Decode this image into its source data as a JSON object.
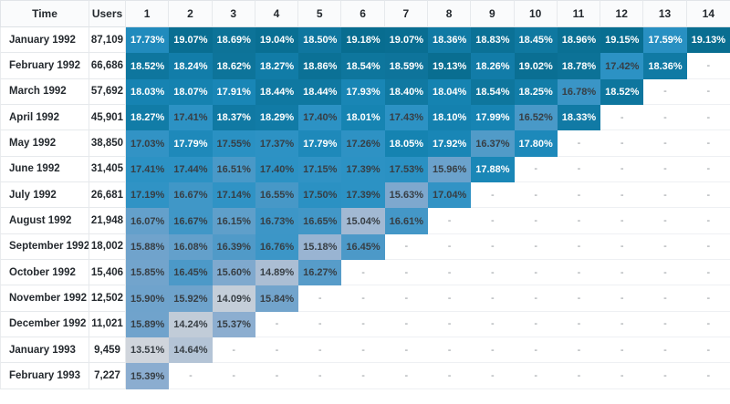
{
  "empty_cell": "-",
  "colors": {
    "header_bg": "#fafbfc",
    "header_text": "#24292e",
    "row_label_text": "#24292e",
    "border": "#e1e4e8",
    "empty_row_border": "#eef0f3",
    "cell_text_light": "#ffffff",
    "cell_text_dark": "#373e44",
    "empty_dash": "#8b9196",
    "white_text_min_value": 17.57,
    "scale": [
      {
        "v": 13.5,
        "c": "#d0d5dc"
      },
      {
        "v": 14.3,
        "c": "#c0cbd8"
      },
      {
        "v": 14.9,
        "c": "#abbed4"
      },
      {
        "v": 15.4,
        "c": "#8aadd0"
      },
      {
        "v": 15.9,
        "c": "#6fa3cc"
      },
      {
        "v": 16.4,
        "c": "#4f9ac8"
      },
      {
        "v": 16.9,
        "c": "#3494c6"
      },
      {
        "v": 17.55,
        "c": "#2a91c3"
      },
      {
        "v": 17.8,
        "c": "#1d89ba"
      },
      {
        "v": 18.05,
        "c": "#1583b1"
      },
      {
        "v": 18.3,
        "c": "#117ba6"
      },
      {
        "v": 18.65,
        "c": "#0d7399"
      },
      {
        "v": 19.2,
        "c": "#086d90"
      }
    ]
  },
  "chart_data": {
    "type": "heatmap",
    "title": "",
    "value_format": "percent",
    "value_range": [
      13.51,
      19.18
    ],
    "legend": "none",
    "columns": [
      "Time",
      "Users",
      "1",
      "2",
      "3",
      "4",
      "5",
      "6",
      "7",
      "8",
      "9",
      "10",
      "11",
      "12",
      "13",
      "14"
    ],
    "rows": [
      {
        "time": "January 1992",
        "users": "87,109",
        "values": [
          17.73,
          19.07,
          18.69,
          19.04,
          18.5,
          19.18,
          19.07,
          18.36,
          18.83,
          18.45,
          18.96,
          19.15,
          17.59,
          19.13
        ]
      },
      {
        "time": "February 1992",
        "users": "66,686",
        "values": [
          18.52,
          18.24,
          18.62,
          18.27,
          18.86,
          18.54,
          18.59,
          19.13,
          18.26,
          19.02,
          18.78,
          17.42,
          18.36,
          null
        ]
      },
      {
        "time": "March 1992",
        "users": "57,692",
        "values": [
          18.03,
          18.07,
          17.91,
          18.44,
          18.44,
          17.93,
          18.4,
          18.04,
          18.54,
          18.25,
          16.78,
          18.52,
          null,
          null
        ]
      },
      {
        "time": "April 1992",
        "users": "45,901",
        "values": [
          18.27,
          17.41,
          18.37,
          18.29,
          17.4,
          18.01,
          17.43,
          18.1,
          17.99,
          16.52,
          18.33,
          null,
          null,
          null
        ]
      },
      {
        "time": "May 1992",
        "users": "38,850",
        "values": [
          17.03,
          17.79,
          17.55,
          17.37,
          17.79,
          17.26,
          18.05,
          17.92,
          16.37,
          17.8,
          null,
          null,
          null,
          null
        ]
      },
      {
        "time": "June 1992",
        "users": "31,405",
        "values": [
          17.41,
          17.44,
          16.51,
          17.4,
          17.15,
          17.39,
          17.53,
          15.96,
          17.88,
          null,
          null,
          null,
          null,
          null
        ]
      },
      {
        "time": "July 1992",
        "users": "26,681",
        "values": [
          17.19,
          16.67,
          17.14,
          16.55,
          17.5,
          17.39,
          15.63,
          17.04,
          null,
          null,
          null,
          null,
          null,
          null
        ]
      },
      {
        "time": "August 1992",
        "users": "21,948",
        "values": [
          16.07,
          16.67,
          16.15,
          16.73,
          16.65,
          15.04,
          16.61,
          null,
          null,
          null,
          null,
          null,
          null,
          null
        ]
      },
      {
        "time": "September 1992",
        "users": "18,002",
        "values": [
          15.88,
          16.08,
          16.39,
          16.76,
          15.18,
          16.45,
          null,
          null,
          null,
          null,
          null,
          null,
          null,
          null
        ]
      },
      {
        "time": "October 1992",
        "users": "15,406",
        "values": [
          15.85,
          16.45,
          15.6,
          14.89,
          16.27,
          null,
          null,
          null,
          null,
          null,
          null,
          null,
          null,
          null
        ]
      },
      {
        "time": "November 1992",
        "users": "12,502",
        "values": [
          15.9,
          15.92,
          14.09,
          15.84,
          null,
          null,
          null,
          null,
          null,
          null,
          null,
          null,
          null,
          null
        ]
      },
      {
        "time": "December 1992",
        "users": "11,021",
        "values": [
          15.89,
          14.24,
          15.37,
          null,
          null,
          null,
          null,
          null,
          null,
          null,
          null,
          null,
          null,
          null
        ]
      },
      {
        "time": "January 1993",
        "users": "9,459",
        "values": [
          13.51,
          14.64,
          null,
          null,
          null,
          null,
          null,
          null,
          null,
          null,
          null,
          null,
          null,
          null
        ]
      },
      {
        "time": "February 1993",
        "users": "7,227",
        "values": [
          15.39,
          null,
          null,
          null,
          null,
          null,
          null,
          null,
          null,
          null,
          null,
          null,
          null,
          null
        ]
      }
    ]
  }
}
